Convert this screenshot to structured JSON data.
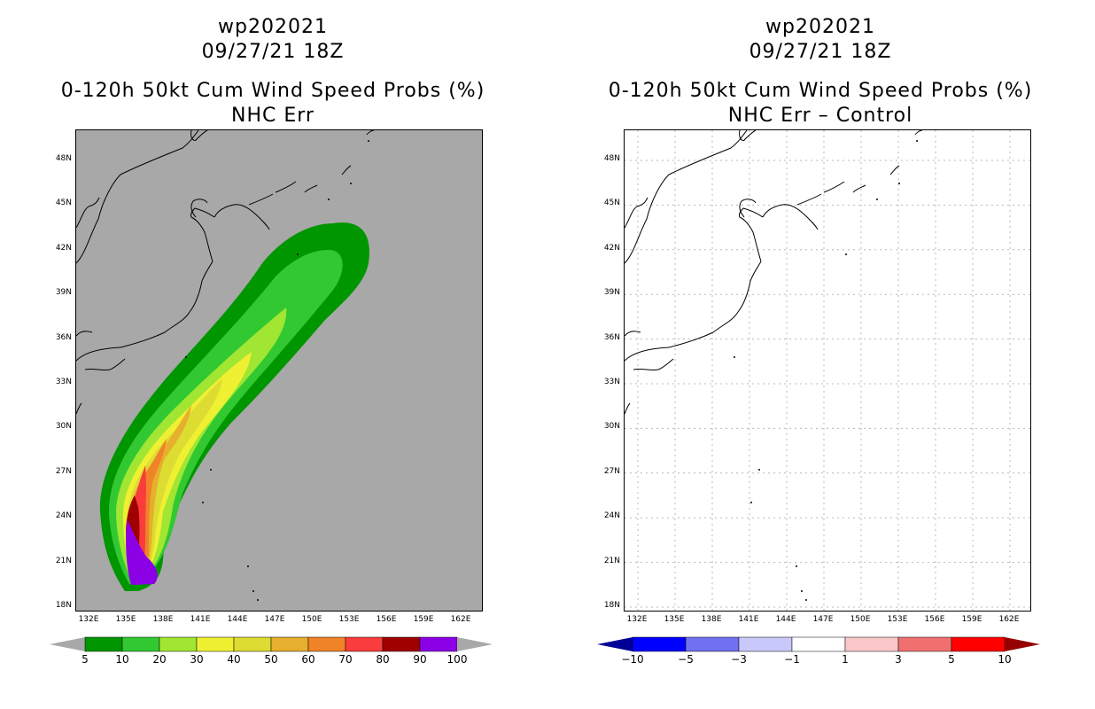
{
  "panels": [
    {
      "storm": "wp202021",
      "datetime": "09/27/21 18Z",
      "product": "0-120h 50kt Cum Wind Speed Probs (%)",
      "subtitle": "NHC Err",
      "background": "#a8a8a8"
    },
    {
      "storm": "wp202021",
      "datetime": "09/27/21 18Z",
      "product": "0-120h 50kt Cum Wind Speed Probs (%)",
      "subtitle": "NHC Err – Control",
      "background": "#ffffff"
    }
  ],
  "lat_labels": [
    "48N",
    "45N",
    "42N",
    "39N",
    "36N",
    "33N",
    "30N",
    "27N",
    "24N",
    "21N",
    "18N"
  ],
  "lon_labels": [
    "132E",
    "135E",
    "138E",
    "141E",
    "144E",
    "147E",
    "150E",
    "153E",
    "156E",
    "159E",
    "162E"
  ],
  "left_colorbar": {
    "labels": [
      "5",
      "10",
      "20",
      "30",
      "40",
      "50",
      "60",
      "70",
      "80",
      "90",
      "100"
    ],
    "colors": [
      "#009600",
      "#32c832",
      "#a0e632",
      "#f0f032",
      "#dcdc32",
      "#e6af2d",
      "#f08228",
      "#fa3c3c",
      "#a00000",
      "#8c00e6"
    ],
    "under_color": "#a8a8a8",
    "over_color": "#a8a8a8"
  },
  "right_colorbar": {
    "labels": [
      "−10",
      "−5",
      "−3",
      "−1",
      "1",
      "3",
      "5",
      "10"
    ],
    "colors": [
      "#0000ff",
      "#7070f0",
      "#c8c8fa",
      "#ffffff",
      "#fac8c8",
      "#f07070",
      "#ff0000"
    ],
    "under_color": "#000096",
    "over_color": "#960000"
  },
  "probability_swath": {
    "levels_percent": [
      5,
      10,
      20,
      30,
      40,
      50,
      60,
      70,
      80,
      90
    ],
    "colors": [
      "#009600",
      "#32c832",
      "#a0e632",
      "#f0f032",
      "#dcdc32",
      "#e6af2d",
      "#f08228",
      "#fa3c3c",
      "#a00000",
      "#8c00e6"
    ]
  }
}
